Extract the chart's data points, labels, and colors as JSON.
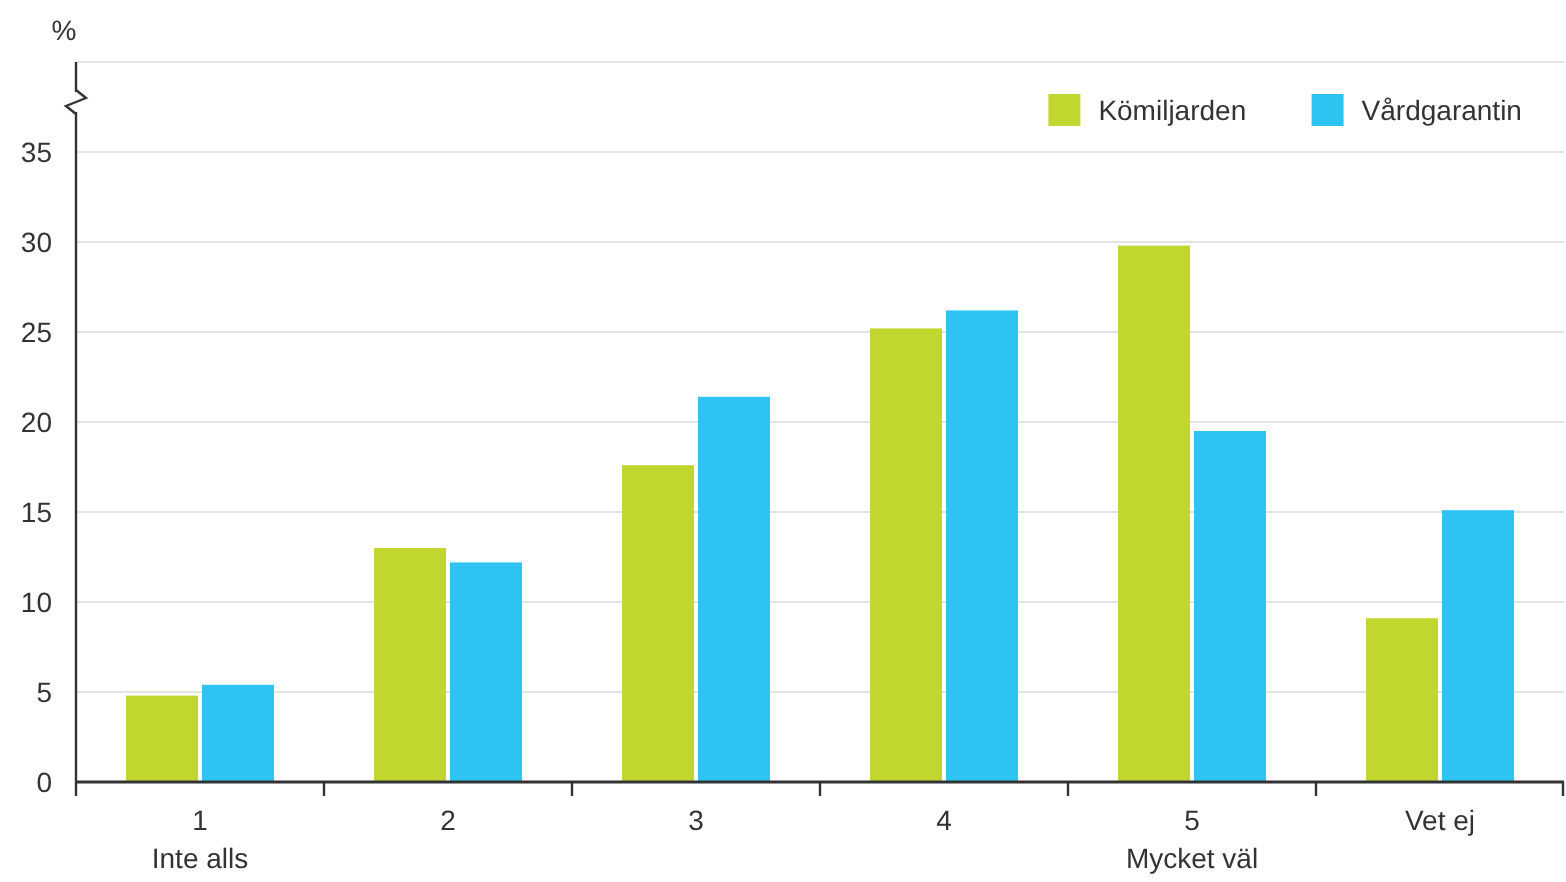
{
  "chart_data": {
    "type": "bar",
    "ylabel": "%",
    "categories": [
      "1\nInte alls",
      "2",
      "3",
      "4",
      "5\nMycket väl",
      "Vet ej"
    ],
    "series": [
      {
        "name": "Kömiljarden",
        "color": "#c1d72f",
        "values": [
          4.8,
          13.0,
          17.6,
          25.2,
          29.8,
          9.1
        ]
      },
      {
        "name": "Vårdgarantin",
        "color": "#2dc4f2",
        "values": [
          5.4,
          12.2,
          21.4,
          26.2,
          19.5,
          15.1
        ]
      }
    ],
    "ylim": [
      0,
      40
    ],
    "yticks": [
      0,
      5,
      10,
      15,
      20,
      25,
      30,
      35,
      {
        "value": 40,
        "label": null
      }
    ],
    "grid": "y",
    "legend": "top right"
  }
}
